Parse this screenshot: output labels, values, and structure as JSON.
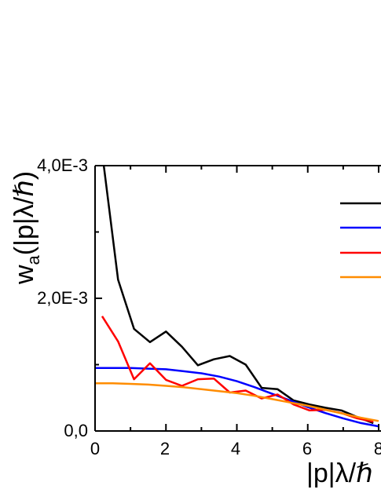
{
  "chart_data": {
    "type": "line",
    "title": "",
    "xlabel": "|p|λ/ℏ",
    "ylabel_main": "w",
    "ylabel_sub": "a",
    "ylabel_rest": "(|p|λ/ℏ)",
    "xlim": [
      0,
      8
    ],
    "ylim": [
      0,
      0.004
    ],
    "x_ticks": [
      {
        "value": 0,
        "label": "0"
      },
      {
        "value": 2,
        "label": "2"
      },
      {
        "value": 4,
        "label": "4"
      },
      {
        "value": 6,
        "label": "6"
      },
      {
        "value": 8,
        "label": "8"
      }
    ],
    "y_ticks": [
      {
        "value": 0,
        "label": "0,0"
      },
      {
        "value": 0.002,
        "label": "2,0E-3"
      },
      {
        "value": 0.004,
        "label": "4,0E-3"
      }
    ],
    "grid": false,
    "legend_position": "top-right",
    "series": [
      {
        "color": "#000000",
        "x": [
          0.2,
          0.65,
          1.1,
          1.55,
          2.0,
          2.45,
          2.9,
          3.35,
          3.8,
          4.25,
          4.7,
          5.15,
          5.6,
          6.05,
          6.5,
          6.95,
          7.4,
          7.85
        ],
        "y": [
          0.0042,
          0.00228,
          0.00154,
          0.00134,
          0.0015,
          0.00127,
          0.00099,
          0.00108,
          0.00113,
          0.001,
          0.00065,
          0.00063,
          0.00046,
          0.0004,
          0.00035,
          0.00031,
          0.00021,
          0.00012
        ]
      },
      {
        "color": "#0000ff",
        "x": [
          0.0,
          0.5,
          1.0,
          1.5,
          2.0,
          2.5,
          3.0,
          3.5,
          4.0,
          4.5,
          5.0,
          5.5,
          6.0,
          6.5,
          7.0,
          7.5,
          8.0
        ],
        "y": [
          0.00095,
          0.00095,
          0.00095,
          0.00094,
          0.00093,
          0.0009,
          0.00087,
          0.00082,
          0.00075,
          0.00066,
          0.00056,
          0.00046,
          0.00036,
          0.00027,
          0.00019,
          0.00012,
          7e-05
        ]
      },
      {
        "color": "#ff0000",
        "x": [
          0.2,
          0.65,
          1.1,
          1.55,
          2.0,
          2.45,
          2.9,
          3.35,
          3.8,
          4.25,
          4.7,
          5.15,
          5.6,
          6.05,
          6.5,
          6.95,
          7.4,
          7.85
        ],
        "y": [
          0.00173,
          0.00135,
          0.00078,
          0.00102,
          0.00077,
          0.00068,
          0.00078,
          0.00079,
          0.00058,
          0.00061,
          0.00049,
          0.00055,
          0.0004,
          0.00031,
          0.00032,
          0.00027,
          0.00019,
          0.00014
        ]
      },
      {
        "color": "#ff8c00",
        "x": [
          0.0,
          0.5,
          1.0,
          1.5,
          2.0,
          2.5,
          3.0,
          3.5,
          4.0,
          4.5,
          5.0,
          5.5,
          6.0,
          6.5,
          7.0,
          7.5,
          8.0
        ],
        "y": [
          0.00072,
          0.00072,
          0.00071,
          0.0007,
          0.00068,
          0.00066,
          0.00063,
          0.0006,
          0.00057,
          0.00053,
          0.00048,
          0.00043,
          0.00038,
          0.00032,
          0.00026,
          0.0002,
          0.00015
        ]
      }
    ]
  }
}
